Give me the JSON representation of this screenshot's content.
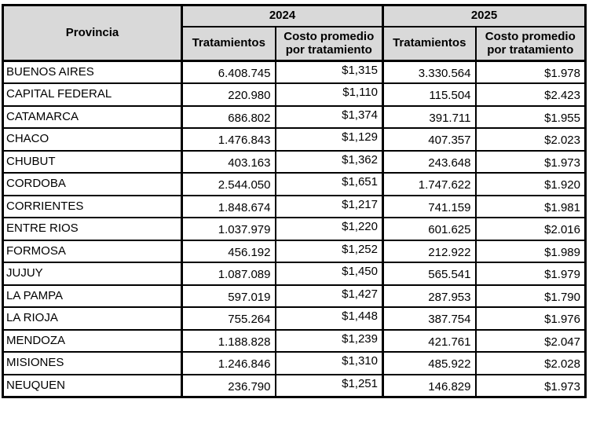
{
  "table": {
    "header": {
      "provincia": "Provincia",
      "year_2024": "2024",
      "year_2025": "2025",
      "tratamientos": "Tratamientos",
      "costo_promedio": "Costo promedio por tratamiento"
    },
    "rows": [
      {
        "provincia": "BUENOS AIRES",
        "tratamientos_2024": "6.408.745",
        "costo_2024": "$1,315",
        "tratamientos_2025": "3.330.564",
        "costo_2025": "$1.978"
      },
      {
        "provincia": "CAPITAL FEDERAL",
        "tratamientos_2024": "220.980",
        "costo_2024": "$1,110",
        "tratamientos_2025": "115.504",
        "costo_2025": "$2.423"
      },
      {
        "provincia": "CATAMARCA",
        "tratamientos_2024": "686.802",
        "costo_2024": "$1,374",
        "tratamientos_2025": "391.711",
        "costo_2025": "$1.955"
      },
      {
        "provincia": "CHACO",
        "tratamientos_2024": "1.476.843",
        "costo_2024": "$1,129",
        "tratamientos_2025": "407.357",
        "costo_2025": "$2.023"
      },
      {
        "provincia": "CHUBUT",
        "tratamientos_2024": "403.163",
        "costo_2024": "$1,362",
        "tratamientos_2025": "243.648",
        "costo_2025": "$1.973"
      },
      {
        "provincia": "CORDOBA",
        "tratamientos_2024": "2.544.050",
        "costo_2024": "$1,651",
        "tratamientos_2025": "1.747.622",
        "costo_2025": "$1.920"
      },
      {
        "provincia": "CORRIENTES",
        "tratamientos_2024": "1.848.674",
        "costo_2024": "$1,217",
        "tratamientos_2025": "741.159",
        "costo_2025": "$1.981"
      },
      {
        "provincia": "ENTRE RIOS",
        "tratamientos_2024": "1.037.979",
        "costo_2024": "$1,220",
        "tratamientos_2025": "601.625",
        "costo_2025": "$2.016"
      },
      {
        "provincia": "FORMOSA",
        "tratamientos_2024": "456.192",
        "costo_2024": "$1,252",
        "tratamientos_2025": "212.922",
        "costo_2025": "$1.989"
      },
      {
        "provincia": "JUJUY",
        "tratamientos_2024": "1.087.089",
        "costo_2024": "$1,450",
        "tratamientos_2025": "565.541",
        "costo_2025": "$1.979"
      },
      {
        "provincia": "LA PAMPA",
        "tratamientos_2024": "597.019",
        "costo_2024": "$1,427",
        "tratamientos_2025": "287.953",
        "costo_2025": "$1.790"
      },
      {
        "provincia": "LA RIOJA",
        "tratamientos_2024": "755.264",
        "costo_2024": "$1,448",
        "tratamientos_2025": "387.754",
        "costo_2025": "$1.976"
      },
      {
        "provincia": "MENDOZA",
        "tratamientos_2024": "1.188.828",
        "costo_2024": "$1,239",
        "tratamientos_2025": "421.761",
        "costo_2025": "$2.047"
      },
      {
        "provincia": "MISIONES",
        "tratamientos_2024": "1.246.846",
        "costo_2024": "$1,310",
        "tratamientos_2025": "485.922",
        "costo_2025": "$2.028"
      },
      {
        "provincia": "NEUQUEN",
        "tratamientos_2024": "236.790",
        "costo_2024": "$1,251",
        "tratamientos_2025": "146.829",
        "costo_2025": "$1.973"
      }
    ]
  },
  "colors": {
    "header_bg": "#d9d9d9",
    "border": "#000000",
    "background": "#ffffff",
    "text": "#000000"
  }
}
